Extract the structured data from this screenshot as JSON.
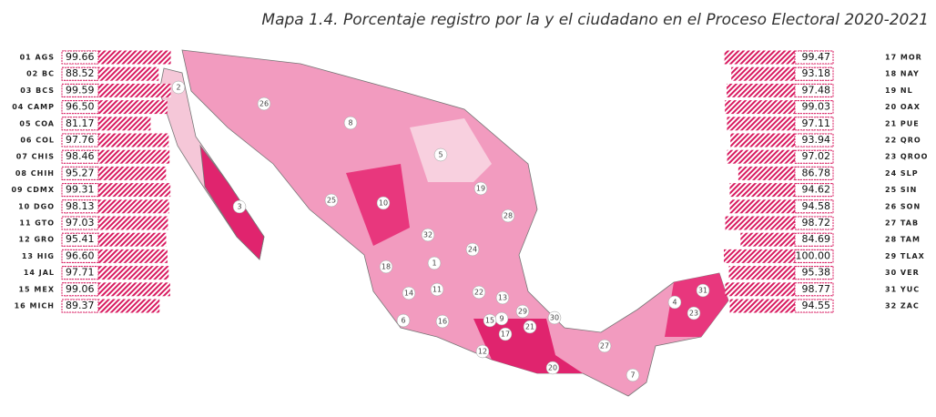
{
  "chart_data": {
    "type": "bar",
    "title": "Mapa 1.4. Porcentaje registro por la y el ciudadano en el Proceso Electoral 2020-2021",
    "categories": [
      "01 AGS",
      "02 BC",
      "03 BCS",
      "04 CAMP",
      "05 COA",
      "06 COL",
      "07 CHIS",
      "08 CHIH",
      "09 CDMX",
      "10 DGO",
      "11 GTO",
      "12 GRO",
      "13 HIG",
      "14 JAL",
      "15 MEX",
      "16 MICH",
      "17 MOR",
      "18 NAY",
      "19 NL",
      "20 OAX",
      "21 PUE",
      "22 QRO",
      "23 QROO",
      "24 SLP",
      "25 SIN",
      "26 SON",
      "27 TAB",
      "28 TAM",
      "29 TLAX",
      "30 VER",
      "31 YUC",
      "32 ZAC"
    ],
    "values": [
      99.66,
      88.52,
      99.59,
      96.5,
      81.17,
      97.76,
      98.46,
      95.27,
      99.31,
      98.13,
      97.03,
      95.41,
      96.6,
      97.71,
      99.06,
      89.37,
      99.47,
      93.18,
      97.48,
      99.03,
      97.11,
      93.94,
      97.02,
      86.78,
      94.62,
      94.58,
      98.72,
      84.69,
      100.0,
      95.38,
      98.77,
      94.55
    ],
    "value_labels": [
      "99.66",
      "88.52",
      "99.59",
      "96.50",
      "81.17",
      "97.76",
      "98.46",
      "95.27",
      "99.31",
      "98.13",
      "97.03",
      "95.41",
      "96.60",
      "97.71",
      "99.06",
      "89.37",
      "99.47",
      "93.18",
      "97.48",
      "99.03",
      "97.11",
      "93.94",
      "97.02",
      "86.78",
      "94.62",
      "94.58",
      "98.72",
      "84.69",
      "100.00",
      "95.38",
      "98.77",
      "94.55"
    ],
    "color": "#d81b60"
  },
  "map": {
    "labels": [
      1,
      2,
      3,
      4,
      5,
      6,
      7,
      8,
      9,
      10,
      11,
      12,
      13,
      14,
      15,
      16,
      17,
      18,
      19,
      20,
      21,
      22,
      23,
      24,
      25,
      26,
      27,
      28,
      29,
      30,
      31,
      32
    ]
  }
}
